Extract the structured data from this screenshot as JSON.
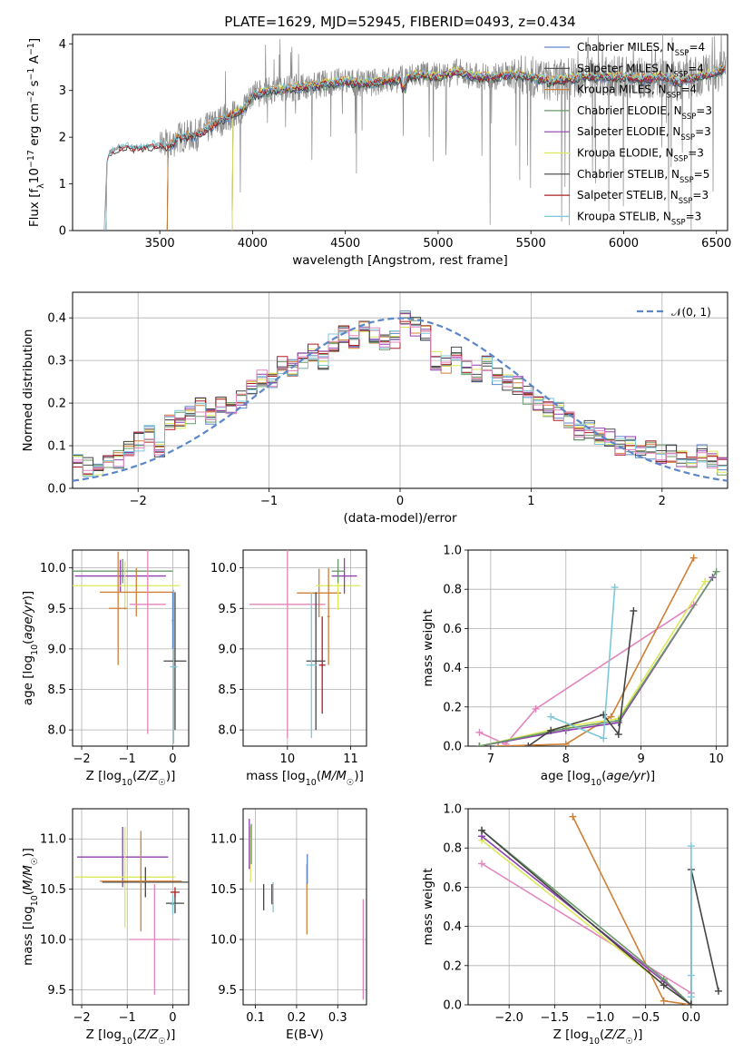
{
  "chart_data": [
    {
      "id": "spectrum",
      "type": "line",
      "title": "PLATE=1629, MJD=52945, FIBERID=0493, z=0.434",
      "xlabel": "wavelength [Angstrom, rest frame]",
      "ylabel": "Flux [f_λ 10^-17 erg cm^-2 s^-1 A^-1]",
      "xlim": [
        3030,
        6560
      ],
      "ylim": [
        0,
        4.2
      ],
      "xticks": [
        3500,
        4000,
        4500,
        5000,
        5500,
        6000,
        6500
      ],
      "yticks": [
        0,
        1,
        2,
        3,
        4
      ],
      "grid": false,
      "legend_position": "top-right",
      "observed": {
        "x": [
          3200,
          3215,
          3230,
          3300,
          3400,
          3500,
          3550,
          3600,
          3700,
          3800,
          3900,
          3950,
          4000,
          4100,
          4200,
          4300,
          4400,
          4500,
          4600,
          4700,
          4800,
          4850,
          4900,
          5000,
          5100,
          5200,
          5300,
          5400,
          5500,
          5600,
          5700,
          5800,
          5900,
          6000,
          6100,
          6200,
          6300,
          6400,
          6500,
          6550
        ],
        "y": [
          0,
          1.45,
          1.7,
          1.8,
          1.78,
          1.85,
          1.8,
          2.0,
          2.05,
          2.3,
          2.5,
          2.6,
          2.9,
          3.0,
          3.05,
          3.1,
          3.15,
          3.2,
          3.15,
          3.2,
          3.25,
          3.3,
          3.35,
          3.3,
          3.4,
          3.3,
          3.3,
          3.35,
          3.3,
          3.2,
          3.25,
          3.3,
          3.3,
          3.3,
          3.25,
          3.3,
          3.2,
          3.3,
          3.4,
          3.5
        ]
      },
      "series": [
        {
          "name": "Chabrier MILES, N_SSP=4",
          "color": "#5b86c8",
          "start": 3540
        },
        {
          "name": "Salpeter MILES, N_SSP=4",
          "color": "#4a4a4a",
          "start": 3540
        },
        {
          "name": "Kroupa MILES, N_SSP=4",
          "color": "#d07f35",
          "start": 3540
        },
        {
          "name": "Chabrier ELODIE, N_SSP=3",
          "color": "#6a9a6a",
          "start": 3890
        },
        {
          "name": "Salpeter ELODIE, N_SSP=3",
          "color": "#8e3fae",
          "start": 3890
        },
        {
          "name": "Kroupa ELODIE, N_SSP=3",
          "color": "#dde85a",
          "start": 3890
        },
        {
          "name": "Chabrier STELIB, N_SSP=5",
          "color": "#444444",
          "start": 3210
        },
        {
          "name": "Salpeter STELIB, N_SSP=3",
          "color": "#a82024",
          "start": 3210
        },
        {
          "name": "Kroupa STELIB, N_SSP=3",
          "color": "#7cc8d8",
          "start": 3210
        }
      ]
    },
    {
      "id": "residuals",
      "type": "line",
      "title": "",
      "xlabel": "(data-model)/error",
      "ylabel": "Normed distribution",
      "xlim": [
        -2.5,
        2.5
      ],
      "ylim": [
        0,
        0.46
      ],
      "xticks": [
        -2,
        -1,
        0,
        1,
        2
      ],
      "yticks": [
        0.0,
        0.1,
        0.2,
        0.3,
        0.4
      ],
      "grid": true,
      "legend_position": "top-right",
      "gaussian_label": "𝒩(0, 1)",
      "gaussian_color": "#5b86c8",
      "hist_y": [
        0.06,
        0.05,
        0.05,
        0.06,
        0.07,
        0.09,
        0.11,
        0.13,
        0.09,
        0.15,
        0.16,
        0.17,
        0.19,
        0.17,
        0.2,
        0.19,
        0.21,
        0.24,
        0.26,
        0.25,
        0.29,
        0.28,
        0.3,
        0.32,
        0.3,
        0.34,
        0.36,
        0.35,
        0.37,
        0.36,
        0.34,
        0.35,
        0.4,
        0.38,
        0.36,
        0.3,
        0.29,
        0.31,
        0.28,
        0.27,
        0.29,
        0.26,
        0.25,
        0.24,
        0.22,
        0.2,
        0.19,
        0.18,
        0.16,
        0.13,
        0.14,
        0.12,
        0.12,
        0.1,
        0.1,
        0.09,
        0.09,
        0.08,
        0.08,
        0.07,
        0.06,
        0.08,
        0.07,
        0.05
      ],
      "hist_colors": [
        "#5b86c8",
        "#4a4a4a",
        "#d07f35",
        "#6a9a6a",
        "#8e3fae",
        "#dde85a",
        "#444444",
        "#a82024",
        "#7cc8d8",
        "#e384bd"
      ]
    },
    {
      "id": "age-vs-Z",
      "type": "scatter",
      "xlabel": "Z [log10(Z/Z☉)]",
      "ylabel": "age [log10(age/yr)]",
      "xlim": [
        -2.2,
        0.35
      ],
      "ylim": [
        7.8,
        10.22
      ],
      "xticks": [
        -2,
        -1,
        0
      ],
      "yticks": [
        8.0,
        8.5,
        9.0,
        9.5,
        10.0
      ],
      "grid": true,
      "points": [
        {
          "x": -1.1,
          "y": 9.96,
          "xerr": 1.1,
          "yerr": 0.15,
          "color": "#6a9a6a"
        },
        {
          "x": -1.15,
          "y": 9.9,
          "xerr": 1.0,
          "yerr": 0.2,
          "color": "#8e3fae"
        },
        {
          "x": -1.05,
          "y": 9.78,
          "xerr": 1.2,
          "yerr": 0.3,
          "color": "#dde85a"
        },
        {
          "x": -0.8,
          "y": 9.7,
          "xerr": 0.8,
          "yerr": 0.3,
          "color": "#d07f35"
        },
        {
          "x": -1.2,
          "y": 9.5,
          "xerr": 0.2,
          "yerr": 0.7,
          "color": "#d07f35"
        },
        {
          "x": -0.55,
          "y": 9.55,
          "xerr": 0.4,
          "yerr": 1.6,
          "color": "#e384bd"
        },
        {
          "x": 0.05,
          "y": 8.85,
          "xerr": 0.25,
          "yerr": 0.85,
          "color": "#444444"
        },
        {
          "x": 0.02,
          "y": 8.78,
          "xerr": 0.08,
          "yerr": 0.95,
          "color": "#7cc8d8"
        },
        {
          "x": 0.0,
          "y": 9.35,
          "xerr": 0.02,
          "yerr": 0.35,
          "color": "#5b86c8"
        }
      ]
    },
    {
      "id": "age-vs-mass",
      "type": "scatter",
      "xlabel": "mass [log10(M/M☉)]",
      "ylabel": "",
      "xlim": [
        9.3,
        11.25
      ],
      "ylim": [
        7.8,
        10.22
      ],
      "xticks": [
        10,
        11
      ],
      "yticks": [
        8.0,
        8.5,
        9.0,
        9.5,
        10.0
      ],
      "grid": true,
      "points": [
        {
          "x": 10.0,
          "y": 9.55,
          "xerr": 0.6,
          "yerr": 1.65,
          "color": "#e384bd"
        },
        {
          "x": 10.5,
          "y": 9.69,
          "xerr": 0.35,
          "yerr": 0.3,
          "color": "#d07f35"
        },
        {
          "x": 10.8,
          "y": 9.78,
          "xerr": 0.35,
          "yerr": 0.3,
          "color": "#dde85a"
        },
        {
          "x": 10.9,
          "y": 9.9,
          "xerr": 0.2,
          "yerr": 0.22,
          "color": "#8e3fae"
        },
        {
          "x": 10.8,
          "y": 9.96,
          "xerr": 0.1,
          "yerr": 0.15,
          "color": "#6a9a6a"
        },
        {
          "x": 10.45,
          "y": 8.85,
          "xerr": 0.15,
          "yerr": 0.85,
          "color": "#444444"
        },
        {
          "x": 10.38,
          "y": 8.8,
          "xerr": 0.08,
          "yerr": 0.9,
          "color": "#7cc8d8"
        },
        {
          "x": 10.55,
          "y": 8.8,
          "xerr": 0.05,
          "yerr": 0.6,
          "color": "#a82024"
        },
        {
          "x": 10.65,
          "y": 9.4,
          "xerr": 0.02,
          "yerr": 0.6,
          "color": "#d07f35"
        }
      ]
    },
    {
      "id": "massweight-vs-age",
      "type": "line",
      "xlabel": "age [log10(age/yr)]",
      "ylabel": "mass weight",
      "xlim": [
        6.7,
        10.15
      ],
      "ylim": [
        0,
        1.0
      ],
      "xticks": [
        7,
        8,
        9,
        10
      ],
      "yticks": [
        0.0,
        0.2,
        0.4,
        0.6,
        0.8,
        1.0
      ],
      "grid": true,
      "series": [
        {
          "color": "#e384bd",
          "x": [
            6.85,
            7.2,
            7.6,
            9.7
          ],
          "y": [
            0.07,
            0.01,
            0.19,
            0.72
          ]
        },
        {
          "color": "#d07f35",
          "x": [
            7.1,
            8.0,
            8.6,
            9.7
          ],
          "y": [
            0.0,
            0.01,
            0.15,
            0.96
          ]
        },
        {
          "color": "#dde85a",
          "x": [
            6.85,
            8.0,
            8.7,
            9.85
          ],
          "y": [
            0.0,
            0.1,
            0.14,
            0.84
          ]
        },
        {
          "color": "#8e3fae",
          "x": [
            6.85,
            8.0,
            8.7,
            9.95
          ],
          "y": [
            0.0,
            0.08,
            0.12,
            0.86
          ]
        },
        {
          "color": "#6a9a6a",
          "x": [
            6.85,
            8.0,
            8.7,
            10.0
          ],
          "y": [
            0.0,
            0.09,
            0.13,
            0.89
          ]
        },
        {
          "color": "#444444",
          "x": [
            7.5,
            7.8,
            8.5,
            8.7,
            8.9
          ],
          "y": [
            0.0,
            0.08,
            0.16,
            0.06,
            0.69
          ]
        },
        {
          "color": "#7cc8d8",
          "x": [
            7.8,
            8.5,
            8.65
          ],
          "y": [
            0.15,
            0.04,
            0.81
          ]
        }
      ]
    },
    {
      "id": "mass-vs-Z",
      "type": "scatter",
      "xlabel": "Z [log10(Z/Z☉)]",
      "ylabel": "mass [log10(M/M☉)]",
      "xlim": [
        -2.2,
        0.35
      ],
      "ylim": [
        9.35,
        11.3
      ],
      "xticks": [
        -2,
        -1,
        0
      ],
      "yticks": [
        9.5,
        10.0,
        10.5,
        11.0
      ],
      "grid": true,
      "points": [
        {
          "x": -1.1,
          "y": 10.82,
          "xerr": 1.0,
          "yerr": 0.3,
          "color": "#8e3fae"
        },
        {
          "x": -1.05,
          "y": 10.62,
          "xerr": 1.1,
          "yerr": 0.5,
          "color": "#dde85a"
        },
        {
          "x": -0.6,
          "y": 10.57,
          "xerr": 0.95,
          "yerr": 0.15,
          "color": "#444444"
        },
        {
          "x": -0.7,
          "y": 10.58,
          "xerr": 0.9,
          "yerr": 0.5,
          "color": "#d07f35"
        },
        {
          "x": -0.4,
          "y": 10.0,
          "xerr": 0.55,
          "yerr": 0.55,
          "color": "#e384bd"
        },
        {
          "x": 0.05,
          "y": 10.36,
          "xerr": 0.2,
          "yerr": 0.1,
          "color": "#444444"
        },
        {
          "x": 0.0,
          "y": 10.35,
          "xerr": 0.05,
          "yerr": 0.1,
          "color": "#7cc8d8"
        },
        {
          "x": 0.05,
          "y": 10.47,
          "xerr": 0.1,
          "yerr": 0.05,
          "color": "#a82024"
        }
      ]
    },
    {
      "id": "mass-vs-ebv",
      "type": "scatter",
      "xlabel": "E(B-V)",
      "ylabel": "",
      "xlim": [
        0.07,
        0.37
      ],
      "ylim": [
        9.35,
        11.3
      ],
      "xticks": [
        0.1,
        0.2,
        0.3
      ],
      "yticks": [
        9.5,
        10.0,
        10.5,
        11.0
      ],
      "grid": true,
      "points": [
        {
          "x": 0.085,
          "y": 10.95,
          "xerr": 0.0,
          "yerr": 0.25,
          "color": "#8e3fae"
        },
        {
          "x": 0.088,
          "y": 10.85,
          "xerr": 0.0,
          "yerr": 0.28,
          "color": "#dde85a"
        },
        {
          "x": 0.09,
          "y": 10.95,
          "xerr": 0.0,
          "yerr": 0.2,
          "color": "#6a9a6a"
        },
        {
          "x": 0.12,
          "y": 10.42,
          "xerr": 0.0,
          "yerr": 0.13,
          "color": "#444444"
        },
        {
          "x": 0.14,
          "y": 10.45,
          "xerr": 0.0,
          "yerr": 0.1,
          "color": "#a82024"
        },
        {
          "x": 0.143,
          "y": 10.42,
          "xerr": 0.0,
          "yerr": 0.15,
          "color": "#7cc8d8"
        },
        {
          "x": 0.225,
          "y": 10.4,
          "xerr": 0.0,
          "yerr": 0.35,
          "color": "#d07f35"
        },
        {
          "x": 0.226,
          "y": 10.7,
          "xerr": 0.0,
          "yerr": 0.15,
          "color": "#5b86c8"
        },
        {
          "x": 0.362,
          "y": 9.9,
          "xerr": 0.0,
          "yerr": 0.5,
          "color": "#e384bd"
        }
      ]
    },
    {
      "id": "massweight-vs-Z",
      "type": "line",
      "xlabel": "Z [log10(Z/Z☉)]",
      "ylabel": "mass weight",
      "xlim": [
        -2.45,
        0.4
      ],
      "ylim": [
        0,
        1.0
      ],
      "xticks": [
        -2.0,
        -1.5,
        -1.0,
        -0.5,
        0.0
      ],
      "yticks": [
        0.0,
        0.2,
        0.4,
        0.6,
        0.8,
        1.0
      ],
      "grid": true,
      "series": [
        {
          "color": "#e384bd",
          "x": [
            -2.3,
            0.0
          ],
          "y": [
            0.72,
            0.06
          ]
        },
        {
          "color": "#d07f35",
          "x": [
            -1.3,
            -0.3,
            0.0
          ],
          "y": [
            0.96,
            0.02,
            0.0
          ]
        },
        {
          "color": "#dde85a",
          "x": [
            -2.3,
            -0.3,
            0.0
          ],
          "y": [
            0.84,
            0.1,
            0.0
          ]
        },
        {
          "color": "#8e3fae",
          "x": [
            -2.3,
            -0.3,
            0.0
          ],
          "y": [
            0.86,
            0.12,
            0.0
          ]
        },
        {
          "color": "#6a9a6a",
          "x": [
            -2.3,
            -0.3,
            0.0
          ],
          "y": [
            0.89,
            0.13,
            0.0
          ]
        },
        {
          "color": "#444444",
          "x": [
            -2.3,
            -0.3,
            0.0,
            0.0,
            0.3
          ],
          "y": [
            0.89,
            0.1,
            0.0,
            0.69,
            0.07
          ]
        },
        {
          "color": "#7cc8d8",
          "x": [
            0.0,
            0.0,
            0.0
          ],
          "y": [
            0.81,
            0.15,
            0.04
          ]
        }
      ]
    }
  ]
}
